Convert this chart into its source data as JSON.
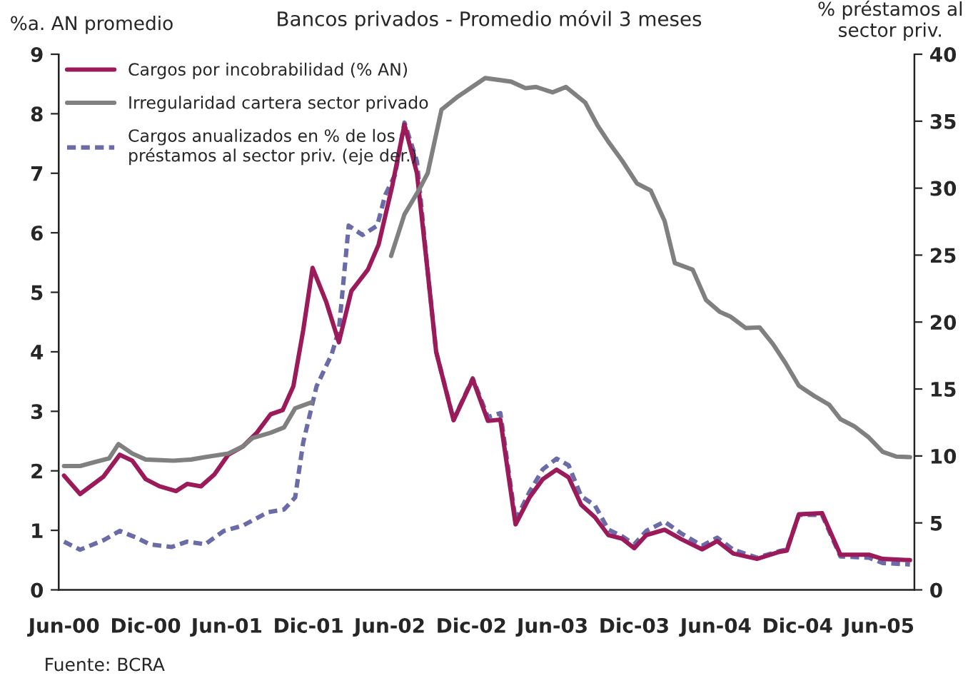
{
  "chart_data": {
    "type": "line",
    "title": "Bancos privados - Promedio móvil 3 meses",
    "ylabel": "%a. AN promedio",
    "y2label": "% préstamos al\nsector priv.",
    "annotations": [
      "Fuente: BCRA"
    ],
    "xlim": [
      "2000-05-20",
      "2005-08-20"
    ],
    "xticks": [
      {
        "value": "2000-06-01",
        "label": "Jun-00"
      },
      {
        "value": "2000-12-01",
        "label": "Dic-00"
      },
      {
        "value": "2001-06-01",
        "label": "Jun-01"
      },
      {
        "value": "2001-12-01",
        "label": "Dic-01"
      },
      {
        "value": "2002-06-01",
        "label": "Jun-02"
      },
      {
        "value": "2002-12-01",
        "label": "Dic-02"
      },
      {
        "value": "2003-06-01",
        "label": "Jun-03"
      },
      {
        "value": "2003-12-01",
        "label": "Dic-03"
      },
      {
        "value": "2004-06-01",
        "label": "Jun-04"
      },
      {
        "value": "2004-12-01",
        "label": "Dic-04"
      },
      {
        "value": "2005-06-01",
        "label": "Jun-05"
      }
    ],
    "ylim": [
      0,
      9
    ],
    "yticks": [
      0,
      1,
      2,
      3,
      4,
      5,
      6,
      7,
      8,
      9
    ],
    "y2lim": [
      0,
      40
    ],
    "y2ticks": [
      0,
      5,
      10,
      15,
      20,
      25,
      30,
      35,
      40
    ],
    "grid": false,
    "legend": "top left",
    "series": [
      {
        "name": "Cargos por incobrabilidad (% AN)",
        "color": "#9b1b5a",
        "line_style": "solid",
        "x": [
          "2000-06-01",
          "2000-07-07",
          "2000-08-28",
          "2000-10-04",
          "2000-11-01",
          "2000-12-01",
          "2001-01-01",
          "2001-02-07",
          "2001-03-04",
          "2001-04-04",
          "2001-05-04",
          "2001-06-04",
          "2001-07-07",
          "2001-08-07",
          "2001-09-07",
          "2001-10-04",
          "2001-10-28",
          "2001-11-19",
          "2001-12-10",
          "2002-01-10",
          "2002-02-07",
          "2002-03-07",
          "2002-04-13",
          "2002-05-07",
          "2002-06-07",
          "2002-07-04",
          "2002-08-01",
          "2002-08-25",
          "2002-09-13",
          "2002-10-22",
          "2002-12-04",
          "2003-01-07",
          "2003-02-04",
          "2003-03-10",
          "2003-04-10",
          "2003-05-10",
          "2003-06-10",
          "2003-07-07",
          "2003-08-04",
          "2003-09-04",
          "2003-10-04",
          "2003-11-04",
          "2003-12-01",
          "2003-12-28",
          "2004-02-07",
          "2004-03-16",
          "2004-05-01",
          "2004-06-04",
          "2004-07-10",
          "2004-09-01",
          "2004-10-22",
          "2004-11-07",
          "2004-12-04",
          "2005-01-25",
          "2005-03-07",
          "2005-05-10",
          "2005-06-10",
          "2005-08-10"
        ],
        "values": [
          1.92,
          1.61,
          1.9,
          2.27,
          2.17,
          1.86,
          1.74,
          1.66,
          1.78,
          1.74,
          1.94,
          2.27,
          2.41,
          2.64,
          2.95,
          3.02,
          3.42,
          4.36,
          5.41,
          4.83,
          4.16,
          5.02,
          5.38,
          5.8,
          6.8,
          7.82,
          7.0,
          5.35,
          4.0,
          2.85,
          3.54,
          2.84,
          2.86,
          1.1,
          1.55,
          1.86,
          2.02,
          1.89,
          1.43,
          1.22,
          0.92,
          0.86,
          0.7,
          0.92,
          1.01,
          0.85,
          0.68,
          0.82,
          0.61,
          0.52,
          0.64,
          0.66,
          1.27,
          1.29,
          0.59,
          0.59,
          0.52,
          0.5
        ]
      },
      {
        "name": "Irregularidad cartera sector privado",
        "color": "#808080",
        "line_style": "solid",
        "x": [
          "2000-06-01",
          "2000-07-07",
          "2000-08-10",
          "2000-09-10",
          "2000-10-01",
          "2000-11-01",
          "2000-12-01",
          "2001-02-01",
          "2001-03-13",
          "2001-04-13",
          "2001-06-04",
          "2001-07-07",
          "2001-07-28",
          "2001-09-07",
          "2001-10-07",
          "2001-11-01",
          "2001-12-07",
          "2002-03-01",
          "2002-06-04",
          "2002-07-04",
          "2002-08-04",
          "2002-08-25",
          "2002-09-25",
          "2002-11-01",
          "2003-01-01",
          "2003-02-28",
          "2003-04-01",
          "2003-04-25",
          "2003-06-01",
          "2003-07-01",
          "2003-08-13",
          "2003-09-10",
          "2003-10-04",
          "2003-11-04",
          "2003-12-07",
          "2004-01-07",
          "2004-02-07",
          "2004-03-01",
          "2004-04-10",
          "2004-05-10",
          "2004-06-10",
          "2004-07-04",
          "2004-08-07",
          "2004-09-07",
          "2004-10-07",
          "2004-11-04",
          "2004-12-04",
          "2005-01-07",
          "2005-02-10",
          "2005-03-07",
          "2005-04-07",
          "2005-05-10",
          "2005-06-10",
          "2005-07-10",
          "2005-08-10"
        ],
        "values": [
          2.08,
          2.08,
          2.15,
          2.21,
          2.45,
          2.29,
          2.19,
          2.17,
          2.19,
          2.23,
          2.29,
          2.41,
          2.55,
          2.64,
          2.73,
          3.05,
          3.15,
          null,
          5.61,
          6.31,
          6.7,
          7.0,
          8.07,
          8.29,
          8.6,
          8.54,
          8.43,
          8.45,
          8.36,
          8.45,
          8.19,
          7.8,
          7.53,
          7.21,
          6.83,
          6.71,
          6.2,
          5.49,
          5.38,
          4.87,
          4.67,
          4.59,
          4.4,
          4.41,
          4.13,
          3.81,
          3.43,
          3.26,
          3.11,
          2.87,
          2.75,
          2.56,
          2.32,
          2.24,
          2.23
        ]
      },
      {
        "name": "Cargos anualizados en % de los\npréstamos al sector priv. (eje der.)",
        "color": "#6b6ba8",
        "line_style": "dotted",
        "axis": "y2",
        "x": [
          "2000-06-01",
          "2000-07-07",
          "2000-08-28",
          "2000-10-04",
          "2000-11-10",
          "2000-12-10",
          "2001-01-28",
          "2001-03-04",
          "2001-04-13",
          "2001-05-25",
          "2001-07-07",
          "2001-09-01",
          "2001-10-07",
          "2001-11-01",
          "2001-11-19",
          "2001-12-19",
          "2002-01-22",
          "2002-02-07",
          "2002-03-01",
          "2002-04-01",
          "2002-05-04",
          "2002-05-22",
          "2002-06-13",
          "2002-07-04",
          "2002-08-01",
          "2002-08-25",
          "2002-09-13",
          "2002-10-22",
          "2002-12-04",
          "2003-01-07",
          "2003-02-04",
          "2003-03-10",
          "2003-04-10",
          "2003-05-10",
          "2003-06-10",
          "2003-07-07",
          "2003-08-04",
          "2003-09-04",
          "2003-10-04",
          "2003-11-04",
          "2003-12-01",
          "2003-12-28",
          "2004-02-07",
          "2004-03-16",
          "2004-05-01",
          "2004-06-04",
          "2004-07-10",
          "2004-09-01",
          "2004-10-22",
          "2004-11-07",
          "2004-12-04",
          "2005-01-25",
          "2005-03-07",
          "2005-05-10",
          "2005-06-10",
          "2005-08-10"
        ],
        "values": [
          3.6,
          3.0,
          3.7,
          4.4,
          3.9,
          3.4,
          3.2,
          3.6,
          3.4,
          4.4,
          4.8,
          5.8,
          6.0,
          6.9,
          11.0,
          15.2,
          17.6,
          19.4,
          27.2,
          26.5,
          27.2,
          29.5,
          31.0,
          34.9,
          32.0,
          23.8,
          17.8,
          12.7,
          15.8,
          12.9,
          13.2,
          5.2,
          7.3,
          9.0,
          9.8,
          9.3,
          7.0,
          6.3,
          4.5,
          4.0,
          3.4,
          4.4,
          5.1,
          4.2,
          3.3,
          3.9,
          3.0,
          2.4,
          2.9,
          3.0,
          5.6,
          5.6,
          2.5,
          2.4,
          2.0,
          1.9
        ]
      }
    ]
  }
}
